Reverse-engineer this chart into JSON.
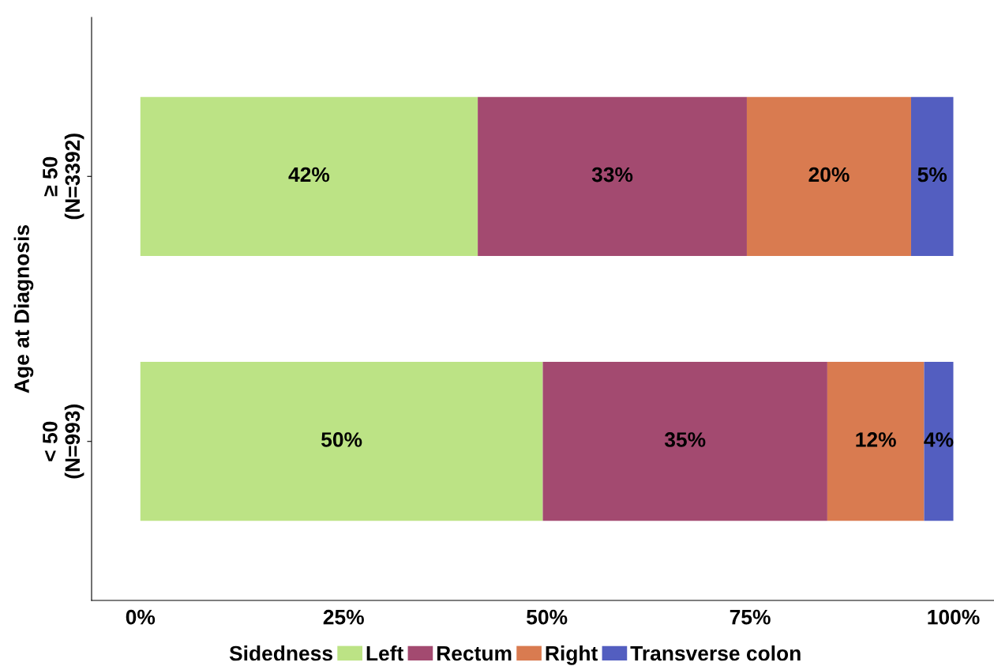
{
  "chart_data": {
    "type": "bar",
    "orientation": "horizontal",
    "stacked": true,
    "ylabel": "Age at Diagnosis",
    "legend_title": "Sidedness",
    "legend": "bottom",
    "categories": [
      "≥ 50\n(N=3392)",
      "< 50\n(N=993)"
    ],
    "series": [
      {
        "name": "Left",
        "color": "#bce385",
        "values": [
          41.5,
          49.5
        ],
        "value_labels": [
          "42%",
          "50%"
        ]
      },
      {
        "name": "Rectum",
        "color": "#a34a70",
        "values": [
          33.1,
          35.0
        ],
        "value_labels": [
          "33%",
          "35%"
        ]
      },
      {
        "name": "Right",
        "color": "#d97b50",
        "values": [
          20.2,
          11.9
        ],
        "value_labels": [
          "20%",
          "12%"
        ]
      },
      {
        "name": "Transverse colon",
        "color": "#535ec0",
        "values": [
          5.2,
          3.6
        ],
        "value_labels": [
          "5%",
          "4%"
        ]
      }
    ],
    "xlim": [
      -6,
      105
    ],
    "xticks": [
      {
        "value": 0,
        "label": "0%"
      },
      {
        "value": 25,
        "label": "25%"
      },
      {
        "value": 50,
        "label": "50%"
      },
      {
        "value": 75,
        "label": "75%"
      },
      {
        "value": 100,
        "label": "100%"
      }
    ],
    "grid": false
  }
}
